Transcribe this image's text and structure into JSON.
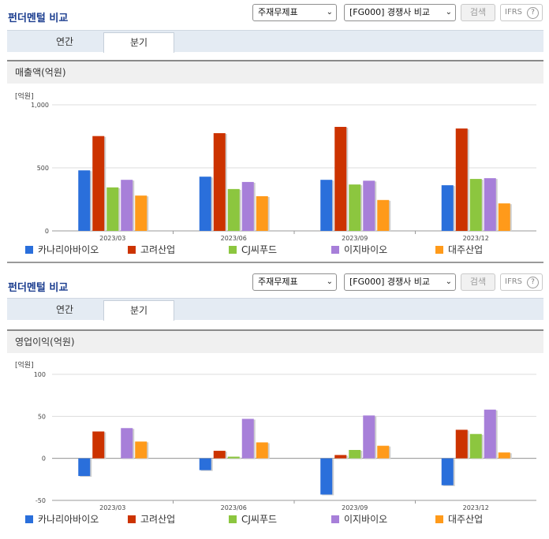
{
  "panels": [
    {
      "title": "펀더멘털 비교",
      "select1": "주재무제표",
      "select2": "[FG000] 경쟁사 비교",
      "search_label": "검색",
      "ifrs_label": "IFRS",
      "tabs": [
        "연간",
        "분기"
      ],
      "active_tab": 1,
      "chart_heading": "매출액(억원)",
      "unit_label": "[억원]"
    },
    {
      "title": "펀더멘털 비교",
      "select1": "주재무제표",
      "select2": "[FG000] 경쟁사 비교",
      "search_label": "검색",
      "ifrs_label": "IFRS",
      "tabs": [
        "연간",
        "분기"
      ],
      "active_tab": 1,
      "chart_heading": "영업이익(억원)",
      "unit_label": "[억원]"
    }
  ],
  "colors": {
    "카나리아바이오": "#2a6fdb",
    "고려산업": "#cc3300",
    "CJ씨푸드": "#8cc63f",
    "이지바이오": "#a77fd9",
    "대주산업": "#ff9a1a"
  },
  "chart_data": [
    {
      "type": "bar",
      "title": "매출액(억원)",
      "categories": [
        "2023/03",
        "2023/06",
        "2023/09",
        "2023/12"
      ],
      "yticks": [
        "0",
        "500",
        "1,000"
      ],
      "ylim": [
        0,
        1000
      ],
      "series": [
        {
          "name": "카나리아바이오",
          "values": [
            480,
            430,
            405,
            362
          ]
        },
        {
          "name": "고려산업",
          "values": [
            752,
            775,
            825,
            812
          ]
        },
        {
          "name": "CJ씨푸드",
          "values": [
            345,
            332,
            368,
            412
          ]
        },
        {
          "name": "이지바이오",
          "values": [
            405,
            388,
            398,
            418
          ]
        },
        {
          "name": "대주산업",
          "values": [
            280,
            275,
            245,
            218
          ]
        }
      ]
    },
    {
      "type": "bar",
      "title": "영업이익(억원)",
      "categories": [
        "2023/03",
        "2023/06",
        "2023/09",
        "2023/12"
      ],
      "yticks": [
        "-50",
        "0",
        "50",
        "100"
      ],
      "ylim": [
        -50,
        100
      ],
      "series": [
        {
          "name": "카나리아바이오",
          "values": [
            -21,
            -14,
            -43,
            -32
          ]
        },
        {
          "name": "고려산업",
          "values": [
            32,
            9,
            4,
            34
          ]
        },
        {
          "name": "CJ씨푸드",
          "values": [
            0,
            2,
            10,
            29
          ]
        },
        {
          "name": "이지바이오",
          "values": [
            36,
            47,
            51,
            58
          ]
        },
        {
          "name": "대주산업",
          "values": [
            20,
            19,
            15,
            7
          ]
        }
      ]
    }
  ]
}
